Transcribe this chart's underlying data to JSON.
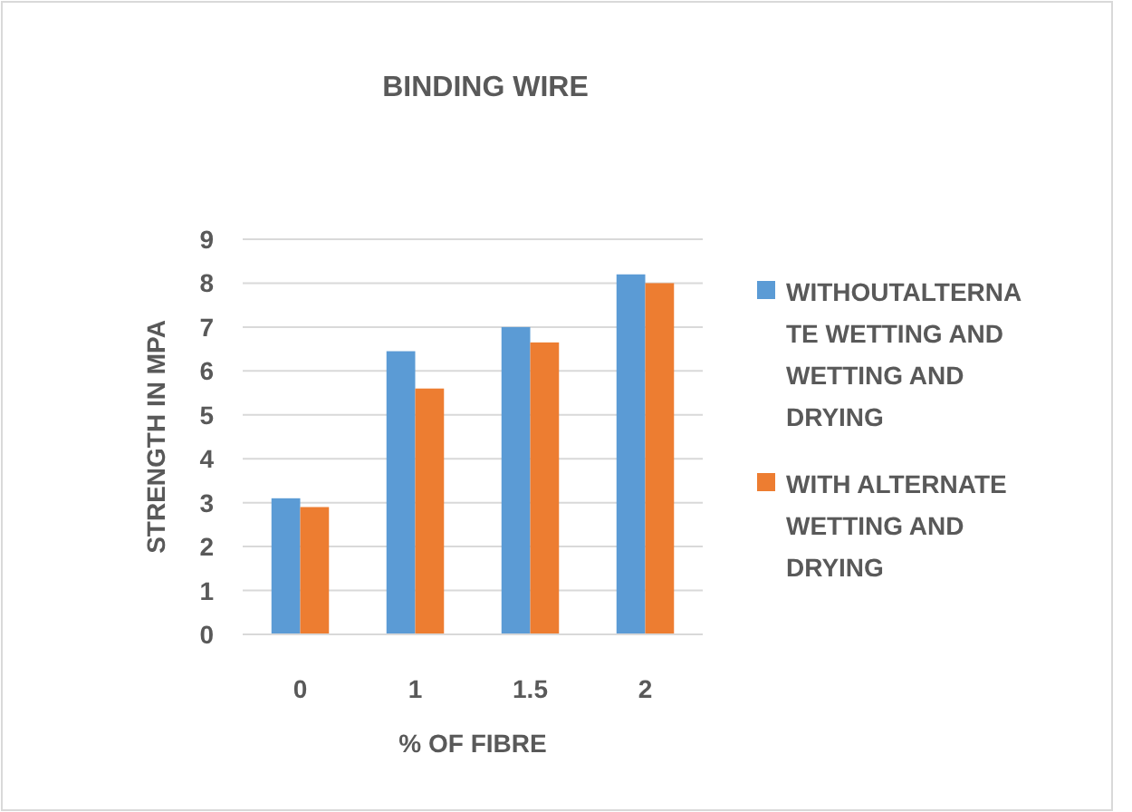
{
  "chart_data": {
    "type": "bar",
    "title": "BINDING WIRE",
    "xlabel": "% OF FIBRE",
    "ylabel": "STRENGTH IN MPA",
    "categories": [
      "0",
      "1",
      "1.5",
      "2"
    ],
    "series": [
      {
        "name": "WITHOUTALTERNATE WETTING AND WETTING AND DRYING",
        "color": "#5b9bd5",
        "values": [
          3.1,
          6.45,
          7.0,
          8.2
        ]
      },
      {
        "name": "WITH ALTERNATE WETTING AND DRYING",
        "color": "#ed7d31",
        "values": [
          2.9,
          5.6,
          6.65,
          8.0
        ]
      }
    ],
    "ylim": [
      0,
      9
    ],
    "yticks": [
      0,
      1,
      2,
      3,
      4,
      5,
      6,
      7,
      8,
      9
    ],
    "grid": "y",
    "legend": "right"
  }
}
